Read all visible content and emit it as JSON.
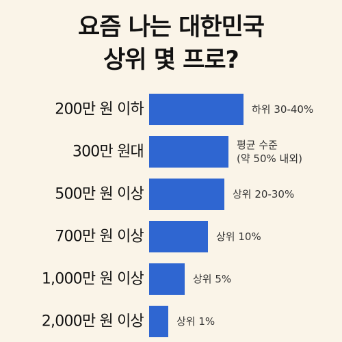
{
  "title_lines": [
    "요즘 나는 대한민국",
    "상위 몇 프로?"
  ],
  "colors": {
    "background": "#faf4e8",
    "bar": "#2f66d1",
    "text": "#111111",
    "value_text": "#333333"
  },
  "chart_data": {
    "type": "bar",
    "orientation": "horizontal",
    "title": "요즘 나는 대한민국 상위 몇 프로?",
    "categories": [
      "200만 원 이하",
      "300만 원대",
      "500만 원 이상",
      "700만 원 이상",
      "1,000만 원 이상",
      "2,000만 원 이상"
    ],
    "values": [
      100,
      84,
      80,
      62,
      38,
      20
    ],
    "value_scale": "relative bar length (unlabeled axis, 200만 원 이하 = 100)",
    "data_labels": [
      [
        "하위 30-40%"
      ],
      [
        "평균 수준",
        "(약 50% 내외)"
      ],
      [
        "상위 20-30%"
      ],
      [
        "상위 10%"
      ],
      [
        "상위 5%"
      ],
      [
        "상위 1%"
      ]
    ],
    "xlabel": "",
    "ylabel": "",
    "xlim": [
      0,
      100
    ],
    "grid": false,
    "legend": "none"
  }
}
